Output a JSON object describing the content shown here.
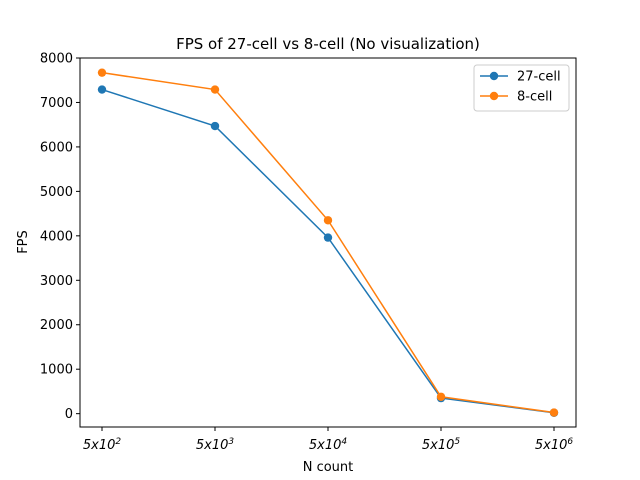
{
  "chart_data": {
    "type": "line",
    "title": "FPS of 27-cell vs 8-cell (No visualization)",
    "xlabel": "N count",
    "ylabel": "FPS",
    "categories": [
      {
        "base": "5x10",
        "exp": "2"
      },
      {
        "base": "5x10",
        "exp": "3"
      },
      {
        "base": "5x10",
        "exp": "4"
      },
      {
        "base": "5x10",
        "exp": "5"
      },
      {
        "base": "5x10",
        "exp": "6"
      }
    ],
    "ylim": [
      -300,
      8000
    ],
    "yticks": [
      0,
      1000,
      2000,
      3000,
      4000,
      5000,
      6000,
      7000,
      8000
    ],
    "grid": false,
    "legend_position": "top-right",
    "series": [
      {
        "name": "27-cell",
        "color": "#1f77b4",
        "values": [
          7290,
          6470,
          3960,
          350,
          20
        ]
      },
      {
        "name": "8-cell",
        "color": "#ff7f0e",
        "values": [
          7670,
          7290,
          4350,
          380,
          25
        ]
      }
    ]
  }
}
